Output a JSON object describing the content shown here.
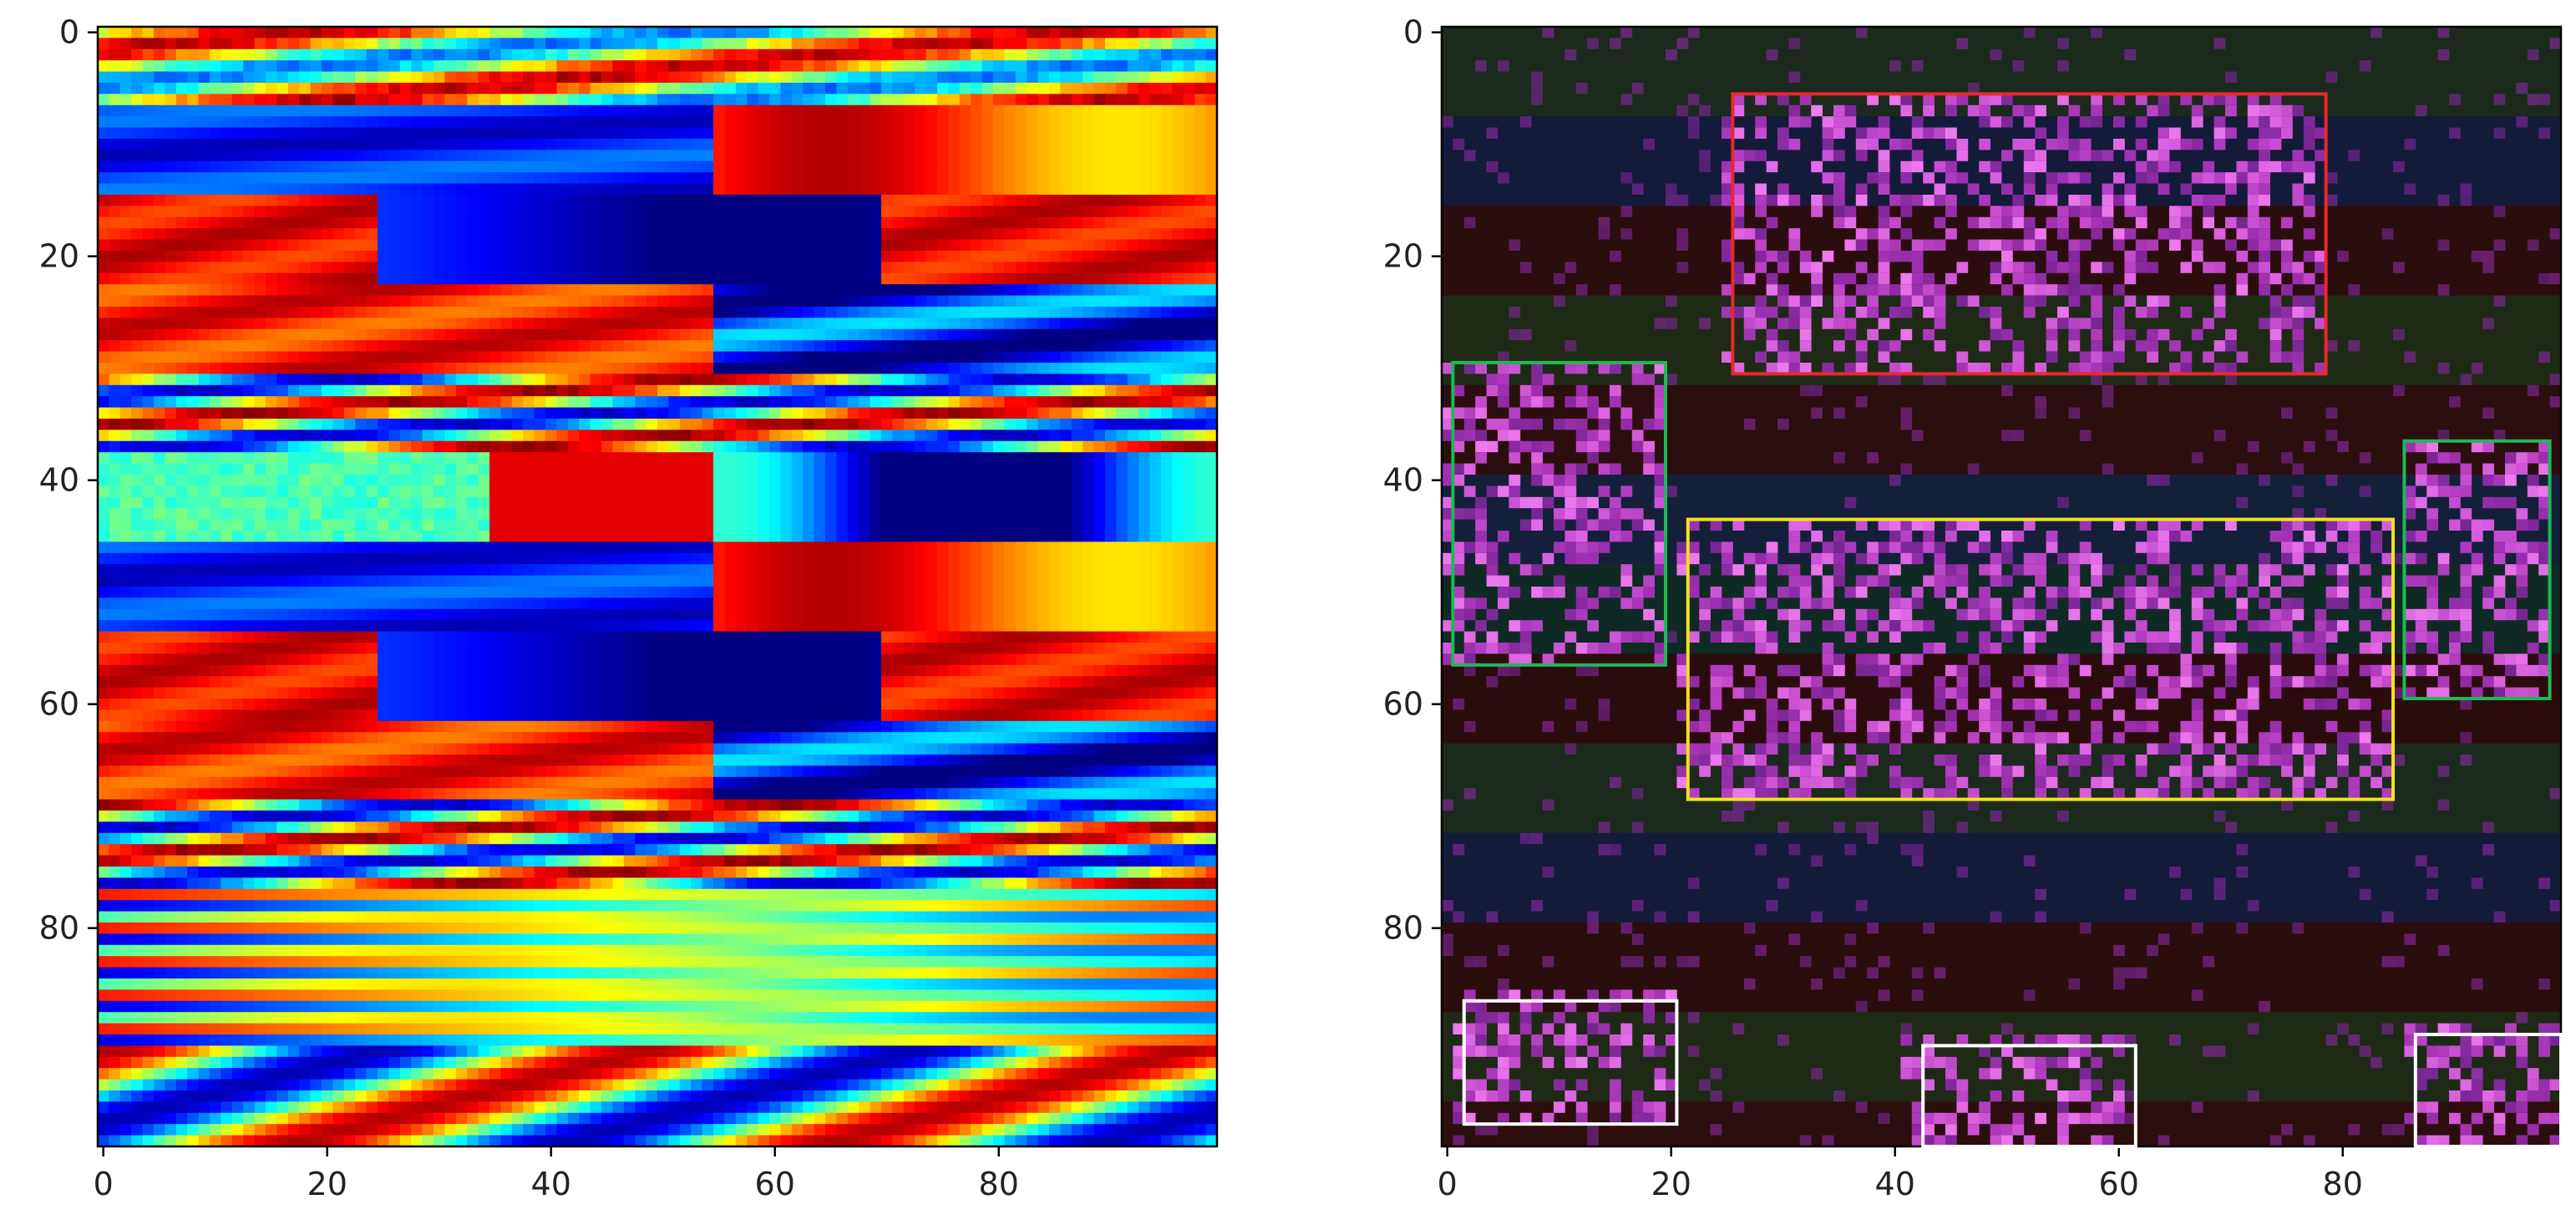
{
  "chart_data": [
    {
      "type": "heatmap",
      "title": "",
      "xlabel": "",
      "ylabel": "",
      "colormap": "jet",
      "grid": false,
      "xlim": [
        -0.5,
        99.5
      ],
      "ylim": [
        99.5,
        -0.5
      ],
      "y_inverted": true,
      "xticks": [
        0,
        20,
        40,
        60,
        80
      ],
      "yticks": [
        0,
        20,
        40,
        60,
        80
      ],
      "xtick_labels": [
        "0",
        "20",
        "40",
        "60",
        "80"
      ],
      "ytick_labels": [
        "0",
        "20",
        "40",
        "60",
        "80"
      ],
      "rows": 100,
      "cols": 100,
      "row_bands": [
        {
          "y0": 0,
          "y1": 7,
          "pattern": "warm-mix"
        },
        {
          "y0": 7,
          "y1": 15,
          "pattern": "blue-then-red"
        },
        {
          "y0": 15,
          "y1": 23,
          "pattern": "red-blue-red"
        },
        {
          "y0": 23,
          "y1": 31,
          "pattern": "red-then-blue"
        },
        {
          "y0": 31,
          "y1": 38,
          "pattern": "mixed"
        },
        {
          "y0": 38,
          "y1": 46,
          "pattern": "cyan-red-blue"
        },
        {
          "y0": 46,
          "y1": 54,
          "pattern": "blue-then-red"
        },
        {
          "y0": 54,
          "y1": 62,
          "pattern": "red-blue-red"
        },
        {
          "y0": 62,
          "y1": 69,
          "pattern": "red-then-blue"
        },
        {
          "y0": 69,
          "y1": 77,
          "pattern": "mixed"
        },
        {
          "y0": 77,
          "y1": 91,
          "pattern": "thin-stripes"
        },
        {
          "y0": 91,
          "y1": 100,
          "pattern": "blue-red-alternating"
        }
      ]
    },
    {
      "type": "heatmap",
      "title": "",
      "xlabel": "",
      "ylabel": "",
      "colormap": "dark-background-with-magenta-hotspots",
      "grid": false,
      "xlim": [
        -0.5,
        99.5
      ],
      "ylim": [
        99.5,
        -0.5
      ],
      "y_inverted": true,
      "xticks": [
        0,
        20,
        40,
        60,
        80
      ],
      "yticks": [
        0,
        20,
        40,
        60,
        80
      ],
      "xtick_labels": [
        "0",
        "20",
        "40",
        "60",
        "80"
      ],
      "ytick_labels": [
        "0",
        "20",
        "40",
        "60",
        "80"
      ],
      "hotspot_regions": [
        {
          "x0": 25,
          "x1": 78,
          "y0": 6,
          "y1": 30
        },
        {
          "x0": 0,
          "x1": 19,
          "y0": 30,
          "y1": 56
        },
        {
          "x0": 86,
          "x1": 98,
          "y0": 37,
          "y1": 59
        },
        {
          "x0": 21,
          "x1": 84,
          "y0": 44,
          "y1": 68
        },
        {
          "x0": 1,
          "x1": 20,
          "y0": 86,
          "y1": 97
        },
        {
          "x0": 41,
          "x1": 60,
          "y0": 90,
          "y1": 99
        },
        {
          "x0": 86,
          "x1": 99,
          "y0": 89,
          "y1": 99
        }
      ],
      "annotation_boxes": [
        {
          "color": "#e8292b",
          "x0": 25.5,
          "y0": 5.5,
          "x1": 78.5,
          "y1": 30.5
        },
        {
          "color": "#1db954",
          "x0": 0.5,
          "y0": 29.5,
          "x1": 19.5,
          "y1": 56.5
        },
        {
          "color": "#1db954",
          "x0": 85.5,
          "y0": 36.5,
          "x1": 98.5,
          "y1": 59.5
        },
        {
          "color": "#f2e21b",
          "x0": 21.5,
          "y0": 43.5,
          "x1": 84.5,
          "y1": 68.5
        },
        {
          "color": "#ffffff",
          "x0": 1.5,
          "y0": 86.5,
          "x1": 20.5,
          "y1": 97.5
        },
        {
          "color": "#ffffff",
          "x0": 42.5,
          "y0": 90.5,
          "x1": 61.5,
          "y1": 99.5
        },
        {
          "color": "#ffffff",
          "x0": 86.5,
          "y0": 89.5,
          "x1": 99.5,
          "y1": 99.5
        }
      ]
    }
  ]
}
